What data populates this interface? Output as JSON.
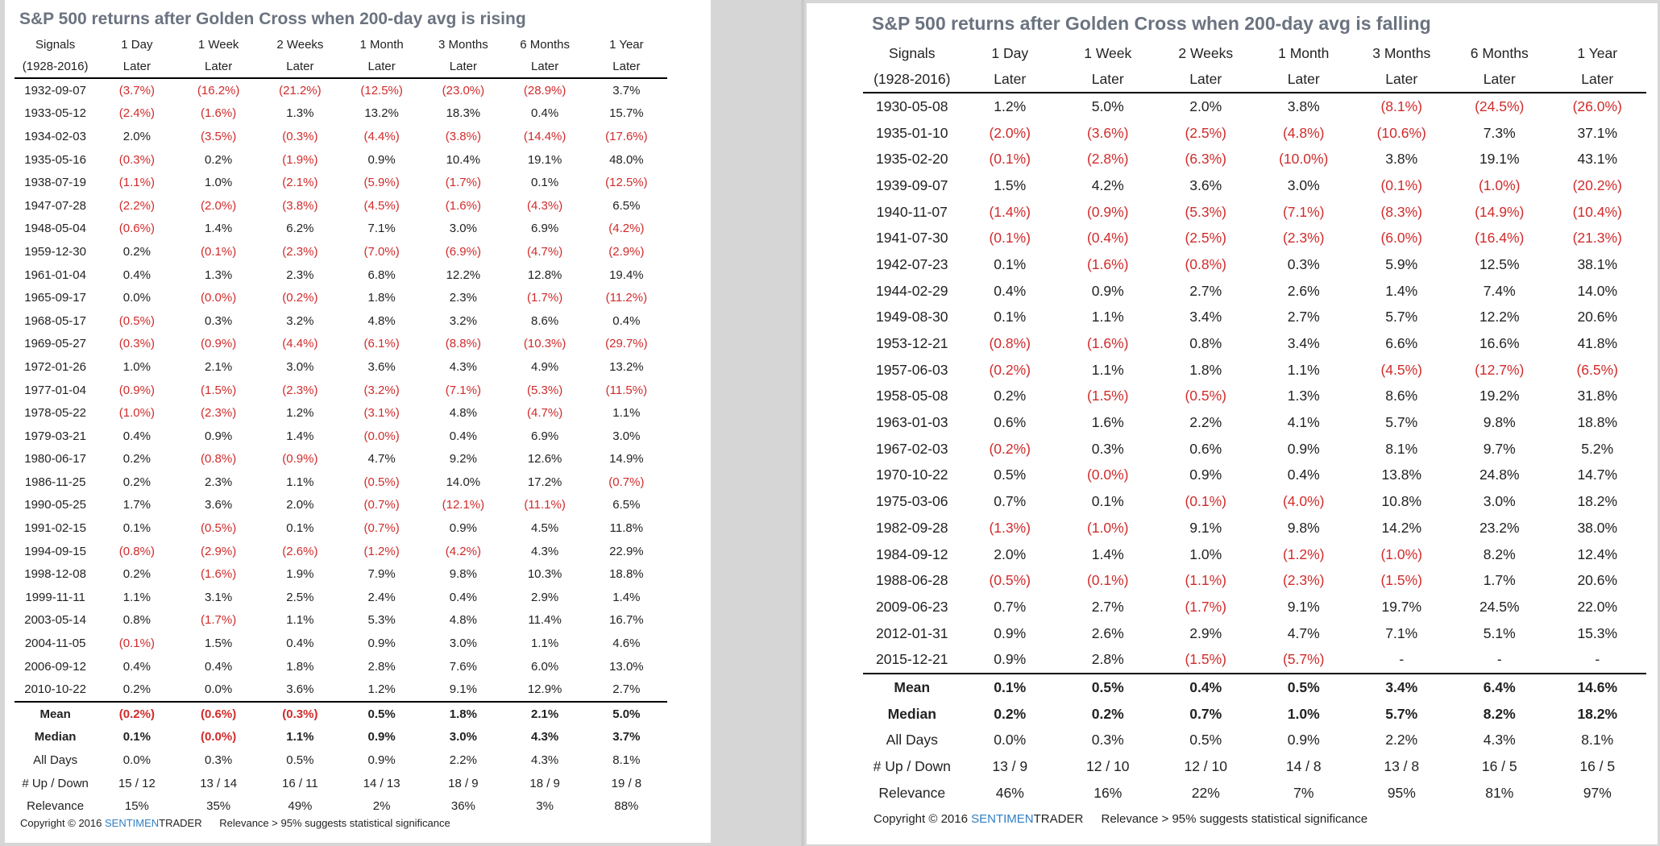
{
  "left": {
    "title": "S&P 500 returns after Golden Cross when 200-day avg is rising",
    "header_top": [
      "Signals",
      "1 Day",
      "1 Week",
      "2 Weeks",
      "1 Month",
      "3 Months",
      "6 Months",
      "1 Year"
    ],
    "header_bottom": [
      "(1928-2016)",
      "Later",
      "Later",
      "Later",
      "Later",
      "Later",
      "Later",
      "Later"
    ],
    "rows": [
      [
        "1932-09-07",
        "(3.7%)",
        "(16.2%)",
        "(21.2%)",
        "(12.5%)",
        "(23.0%)",
        "(28.9%)",
        "3.7%"
      ],
      [
        "1933-05-12",
        "(2.4%)",
        "(1.6%)",
        "1.3%",
        "13.2%",
        "18.3%",
        "0.4%",
        "15.7%"
      ],
      [
        "1934-02-03",
        "2.0%",
        "(3.5%)",
        "(0.3%)",
        "(4.4%)",
        "(3.8%)",
        "(14.4%)",
        "(17.6%)"
      ],
      [
        "1935-05-16",
        "(0.3%)",
        "0.2%",
        "(1.9%)",
        "0.9%",
        "10.4%",
        "19.1%",
        "48.0%"
      ],
      [
        "1938-07-19",
        "(1.1%)",
        "1.0%",
        "(2.1%)",
        "(5.9%)",
        "(1.7%)",
        "0.1%",
        "(12.5%)"
      ],
      [
        "1947-07-28",
        "(2.2%)",
        "(2.0%)",
        "(3.8%)",
        "(4.5%)",
        "(1.6%)",
        "(4.3%)",
        "6.5%"
      ],
      [
        "1948-05-04",
        "(0.6%)",
        "1.4%",
        "6.2%",
        "7.1%",
        "3.0%",
        "6.9%",
        "(4.2%)"
      ],
      [
        "1959-12-30",
        "0.2%",
        "(0.1%)",
        "(2.3%)",
        "(7.0%)",
        "(6.9%)",
        "(4.7%)",
        "(2.9%)"
      ],
      [
        "1961-01-04",
        "0.4%",
        "1.3%",
        "2.3%",
        "6.8%",
        "12.2%",
        "12.8%",
        "19.4%"
      ],
      [
        "1965-09-17",
        "0.0%",
        "(0.0%)",
        "(0.2%)",
        "1.8%",
        "2.3%",
        "(1.7%)",
        "(11.2%)"
      ],
      [
        "1968-05-17",
        "(0.5%)",
        "0.3%",
        "3.2%",
        "4.8%",
        "3.2%",
        "8.6%",
        "0.4%"
      ],
      [
        "1969-05-27",
        "(0.3%)",
        "(0.9%)",
        "(4.4%)",
        "(6.1%)",
        "(8.8%)",
        "(10.3%)",
        "(29.7%)"
      ],
      [
        "1972-01-26",
        "1.0%",
        "2.1%",
        "3.0%",
        "3.6%",
        "4.3%",
        "4.9%",
        "13.2%"
      ],
      [
        "1977-01-04",
        "(0.9%)",
        "(1.5%)",
        "(2.3%)",
        "(3.2%)",
        "(7.1%)",
        "(5.3%)",
        "(11.5%)"
      ],
      [
        "1978-05-22",
        "(1.0%)",
        "(2.3%)",
        "1.2%",
        "(3.1%)",
        "4.8%",
        "(4.7%)",
        "1.1%"
      ],
      [
        "1979-03-21",
        "0.4%",
        "0.9%",
        "1.4%",
        "(0.0%)",
        "0.4%",
        "6.9%",
        "3.0%"
      ],
      [
        "1980-06-17",
        "0.2%",
        "(0.8%)",
        "(0.9%)",
        "4.7%",
        "9.2%",
        "12.6%",
        "14.9%"
      ],
      [
        "1986-11-25",
        "0.2%",
        "2.3%",
        "1.1%",
        "(0.5%)",
        "14.0%",
        "17.2%",
        "(0.7%)"
      ],
      [
        "1990-05-25",
        "1.7%",
        "3.6%",
        "2.0%",
        "(0.7%)",
        "(12.1%)",
        "(11.1%)",
        "6.5%"
      ],
      [
        "1991-02-15",
        "0.1%",
        "(0.5%)",
        "0.1%",
        "(0.7%)",
        "0.9%",
        "4.5%",
        "11.8%"
      ],
      [
        "1994-09-15",
        "(0.8%)",
        "(2.9%)",
        "(2.6%)",
        "(1.2%)",
        "(4.2%)",
        "4.3%",
        "22.9%"
      ],
      [
        "1998-12-08",
        "0.2%",
        "(1.6%)",
        "1.9%",
        "7.9%",
        "9.8%",
        "10.3%",
        "18.8%"
      ],
      [
        "1999-11-11",
        "1.1%",
        "3.1%",
        "2.5%",
        "2.4%",
        "0.4%",
        "2.9%",
        "1.4%"
      ],
      [
        "2003-05-14",
        "0.8%",
        "(1.7%)",
        "1.1%",
        "5.3%",
        "4.8%",
        "11.4%",
        "16.7%"
      ],
      [
        "2004-11-05",
        "(0.1%)",
        "1.5%",
        "0.4%",
        "0.9%",
        "3.0%",
        "1.1%",
        "4.6%"
      ],
      [
        "2006-09-12",
        "0.4%",
        "0.4%",
        "1.8%",
        "2.8%",
        "7.6%",
        "6.0%",
        "13.0%"
      ],
      [
        "2010-10-22",
        "0.2%",
        "0.0%",
        "3.6%",
        "1.2%",
        "9.1%",
        "12.9%",
        "2.7%"
      ]
    ],
    "summary": [
      [
        "Mean",
        "(0.2%)",
        "(0.6%)",
        "(0.3%)",
        "0.5%",
        "1.8%",
        "2.1%",
        "5.0%"
      ],
      [
        "Median",
        "0.1%",
        "(0.0%)",
        "1.1%",
        "0.9%",
        "3.0%",
        "4.3%",
        "3.7%"
      ],
      [
        "All Days",
        "0.0%",
        "0.3%",
        "0.5%",
        "0.9%",
        "2.2%",
        "4.3%",
        "8.1%"
      ],
      [
        "# Up / Down",
        "15 / 12",
        "13 / 14",
        "16 / 11",
        "14 / 13",
        "18 / 9",
        "18 / 9",
        "19 / 8"
      ],
      [
        "Relevance",
        "15%",
        "35%",
        "49%",
        "2%",
        "36%",
        "3%",
        "88%"
      ]
    ],
    "footer": {
      "copyright": "Copyright © 2016",
      "brand_a": "SENTIMEN",
      "brand_b": "TRADER",
      "note": "Relevance > 95% suggests statistical significance"
    }
  },
  "right": {
    "title": "S&P 500 returns after Golden Cross when 200-day avg is falling",
    "header_top": [
      "Signals",
      "1 Day",
      "1 Week",
      "2 Weeks",
      "1 Month",
      "3 Months",
      "6 Months",
      "1 Year"
    ],
    "header_bottom": [
      "(1928-2016)",
      "Later",
      "Later",
      "Later",
      "Later",
      "Later",
      "Later",
      "Later"
    ],
    "rows": [
      [
        "1930-05-08",
        "1.2%",
        "5.0%",
        "2.0%",
        "3.8%",
        "(8.1%)",
        "(24.5%)",
        "(26.0%)"
      ],
      [
        "1935-01-10",
        "(2.0%)",
        "(3.6%)",
        "(2.5%)",
        "(4.8%)",
        "(10.6%)",
        "7.3%",
        "37.1%"
      ],
      [
        "1935-02-20",
        "(0.1%)",
        "(2.8%)",
        "(6.3%)",
        "(10.0%)",
        "3.8%",
        "19.1%",
        "43.1%"
      ],
      [
        "1939-09-07",
        "1.5%",
        "4.2%",
        "3.6%",
        "3.0%",
        "(0.1%)",
        "(1.0%)",
        "(20.2%)"
      ],
      [
        "1940-11-07",
        "(1.4%)",
        "(0.9%)",
        "(5.3%)",
        "(7.1%)",
        "(8.3%)",
        "(14.9%)",
        "(10.4%)"
      ],
      [
        "1941-07-30",
        "(0.1%)",
        "(0.4%)",
        "(2.5%)",
        "(2.3%)",
        "(6.0%)",
        "(16.4%)",
        "(21.3%)"
      ],
      [
        "1942-07-23",
        "0.1%",
        "(1.6%)",
        "(0.8%)",
        "0.3%",
        "5.9%",
        "12.5%",
        "38.1%"
      ],
      [
        "1944-02-29",
        "0.4%",
        "0.9%",
        "2.7%",
        "2.6%",
        "1.4%",
        "7.4%",
        "14.0%"
      ],
      [
        "1949-08-30",
        "0.1%",
        "1.1%",
        "3.4%",
        "2.7%",
        "5.7%",
        "12.2%",
        "20.6%"
      ],
      [
        "1953-12-21",
        "(0.8%)",
        "(1.6%)",
        "0.8%",
        "3.4%",
        "6.6%",
        "16.6%",
        "41.8%"
      ],
      [
        "1957-06-03",
        "(0.2%)",
        "1.1%",
        "1.8%",
        "1.1%",
        "(4.5%)",
        "(12.7%)",
        "(6.5%)"
      ],
      [
        "1958-05-08",
        "0.2%",
        "(1.5%)",
        "(0.5%)",
        "1.3%",
        "8.6%",
        "19.2%",
        "31.8%"
      ],
      [
        "1963-01-03",
        "0.6%",
        "1.6%",
        "2.2%",
        "4.1%",
        "5.7%",
        "9.8%",
        "18.8%"
      ],
      [
        "1967-02-03",
        "(0.2%)",
        "0.3%",
        "0.6%",
        "0.9%",
        "8.1%",
        "9.7%",
        "5.2%"
      ],
      [
        "1970-10-22",
        "0.5%",
        "(0.0%)",
        "0.9%",
        "0.4%",
        "13.8%",
        "24.8%",
        "14.7%"
      ],
      [
        "1975-03-06",
        "0.7%",
        "0.1%",
        "(0.1%)",
        "(4.0%)",
        "10.8%",
        "3.0%",
        "18.2%"
      ],
      [
        "1982-09-28",
        "(1.3%)",
        "(1.0%)",
        "9.1%",
        "9.8%",
        "14.2%",
        "23.2%",
        "38.0%"
      ],
      [
        "1984-09-12",
        "2.0%",
        "1.4%",
        "1.0%",
        "(1.2%)",
        "(1.0%)",
        "8.2%",
        "12.4%"
      ],
      [
        "1988-06-28",
        "(0.5%)",
        "(0.1%)",
        "(1.1%)",
        "(2.3%)",
        "(1.5%)",
        "1.7%",
        "20.6%"
      ],
      [
        "2009-06-23",
        "0.7%",
        "2.7%",
        "(1.7%)",
        "9.1%",
        "19.7%",
        "24.5%",
        "22.0%"
      ],
      [
        "2012-01-31",
        "0.9%",
        "2.6%",
        "2.9%",
        "4.7%",
        "7.1%",
        "5.1%",
        "15.3%"
      ],
      [
        "2015-12-21",
        "0.9%",
        "2.8%",
        "(1.5%)",
        "(5.7%)",
        "-",
        "-",
        "-"
      ]
    ],
    "summary": [
      [
        "Mean",
        "0.1%",
        "0.5%",
        "0.4%",
        "0.5%",
        "3.4%",
        "6.4%",
        "14.6%"
      ],
      [
        "Median",
        "0.2%",
        "0.2%",
        "0.7%",
        "1.0%",
        "5.7%",
        "8.2%",
        "18.2%"
      ],
      [
        "All Days",
        "0.0%",
        "0.3%",
        "0.5%",
        "0.9%",
        "2.2%",
        "4.3%",
        "8.1%"
      ],
      [
        "# Up / Down",
        "13 / 9",
        "12 / 10",
        "12 / 10",
        "14 / 8",
        "13 / 8",
        "16 / 5",
        "16 / 5"
      ],
      [
        "Relevance",
        "46%",
        "16%",
        "22%",
        "7%",
        "95%",
        "81%",
        "97%"
      ]
    ],
    "footer": {
      "copyright": "Copyright © 2016",
      "brand_a": "SENTIMEN",
      "brand_b": "TRADER",
      "note": "Relevance > 95% suggests statistical significance"
    }
  },
  "colors": {
    "negative": "#d12b2b",
    "brand": "#2f7ec4",
    "title": "#6b7380"
  }
}
